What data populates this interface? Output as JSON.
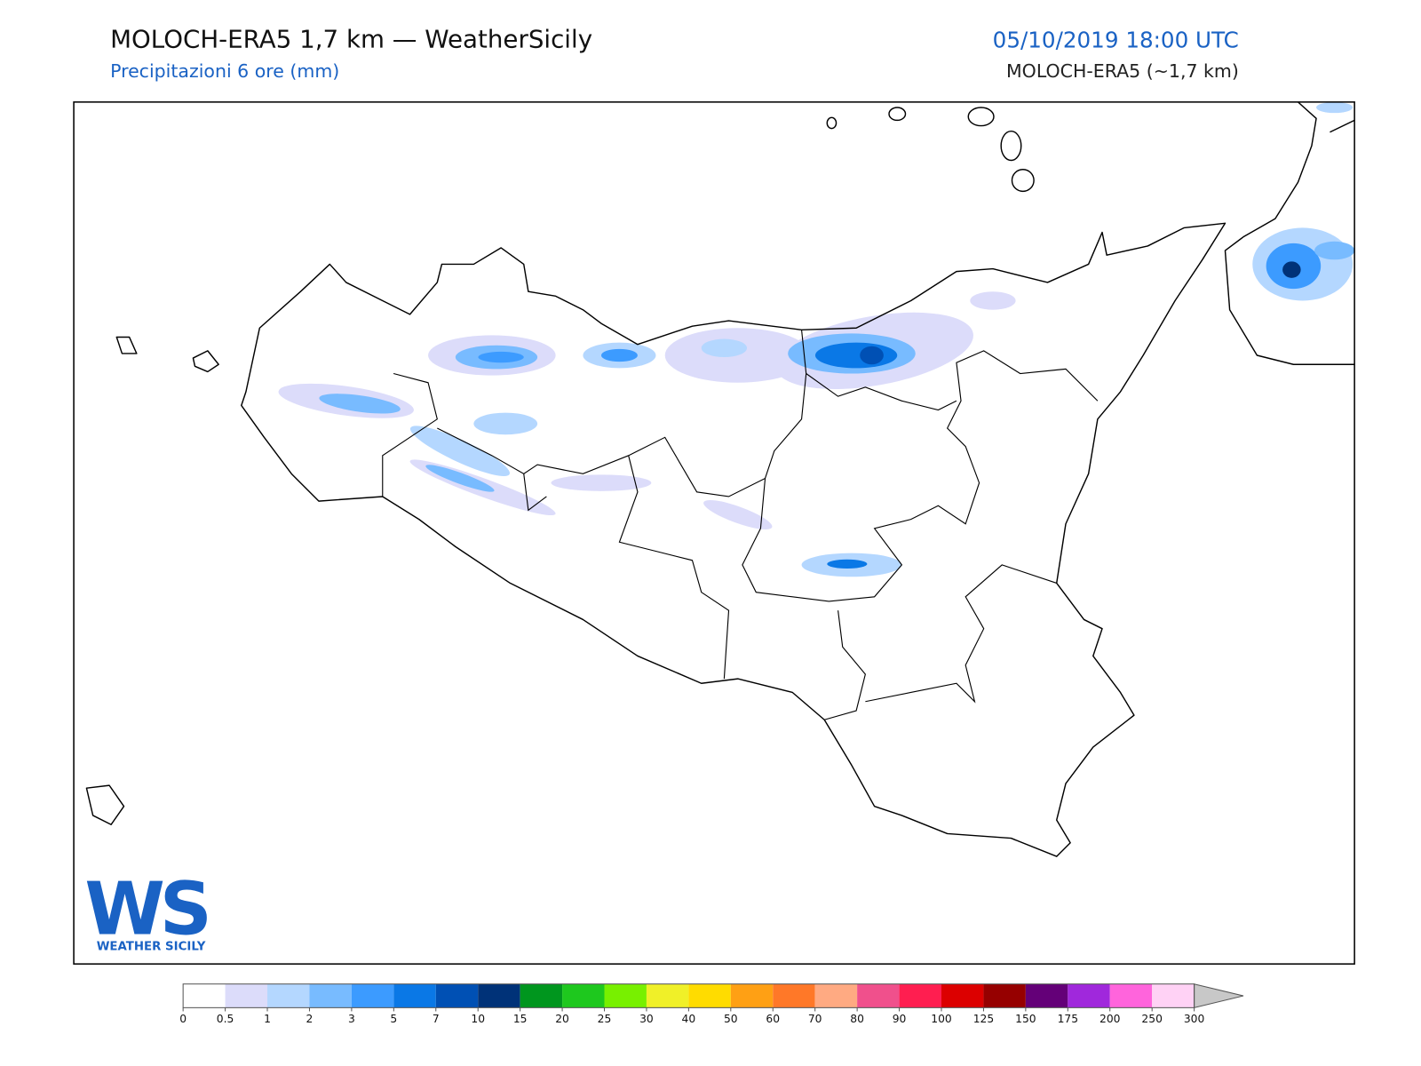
{
  "header": {
    "title": "MOLOCH-ERA5 1,7 km — WeatherSicily",
    "subtitle": "Precipitazioni 6 ore (mm)",
    "valid_time": "05/10/2019 18:00 UTC",
    "model": "MOLOCH-ERA5 (~1,7 km)"
  },
  "logo": {
    "text": "WS",
    "caption": "WEATHER SICILY"
  },
  "colorbar": {
    "ticks": [
      0,
      0.5,
      1,
      2,
      3,
      5,
      7,
      10,
      15,
      20,
      25,
      30,
      40,
      50,
      60,
      70,
      80,
      90,
      100,
      125,
      150,
      175,
      200,
      250,
      300
    ],
    "colors": [
      "#ffffff",
      "#dcdcfa",
      "#b4d7ff",
      "#78bbff",
      "#3c9bff",
      "#0a78e6",
      "#0050b4",
      "#003278",
      "#00961e",
      "#1ec81e",
      "#78f000",
      "#f0f028",
      "#ffdc00",
      "#ffa014",
      "#ff7828",
      "#ffaa82",
      "#f0508c",
      "#ff1e50",
      "#dc0000",
      "#960000",
      "#640078",
      "#a028dc",
      "#ff64dc",
      "#ffd2f5"
    ],
    "extend_color": "#c8c8c8"
  }
}
